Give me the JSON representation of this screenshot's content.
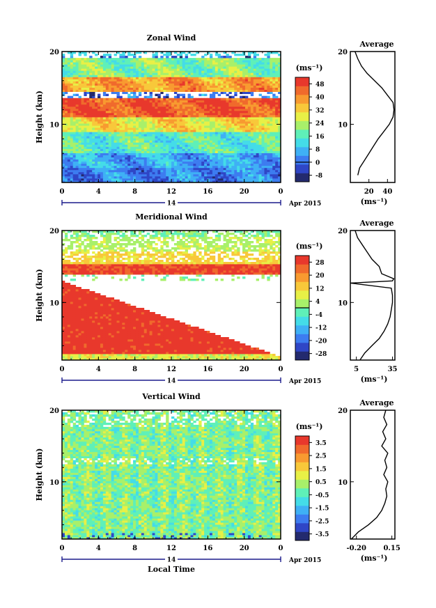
{
  "figure": {
    "xlabel": "Local Time",
    "date_label": "Apr 2015",
    "day_label": "14",
    "unit_label": "(ms⁻¹)",
    "avg_title": "Average",
    "height_label": "Height (km)"
  },
  "chart_data": [
    {
      "type": "heatmap",
      "title": "Zonal Wind",
      "xlabel": "",
      "ylabel": "Height (km)",
      "x_ticks": [
        "0",
        "4",
        "8",
        "12",
        "16",
        "20",
        "0"
      ],
      "y_ticks": [
        "10",
        "20"
      ],
      "xlim": [
        0,
        24
      ],
      "ylim": [
        2,
        20
      ],
      "colorbar": {
        "unit": "(ms⁻¹)",
        "tick_labels": [
          "48",
          "40",
          "32",
          "24",
          "16",
          "8",
          "0",
          "-8"
        ],
        "range": [
          -12,
          52
        ],
        "colors": [
          "#232a6e",
          "#2f46c6",
          "#3d7cf0",
          "#3fb0f5",
          "#44dce8",
          "#5ff0b8",
          "#a8f06a",
          "#e8f046",
          "#f8c83a",
          "#f89a30",
          "#f06a2c",
          "#e8382c"
        ]
      },
      "features": [
        {
          "z_km": [
            2,
            4
          ],
          "value": 2
        },
        {
          "z_km": [
            4,
            6
          ],
          "value": 6
        },
        {
          "z_km": [
            6,
            9
          ],
          "value": 16
        },
        {
          "z_km": [
            9,
            11
          ],
          "value": 30
        },
        {
          "z_km": [
            11,
            13.5
          ],
          "value": 46
        },
        {
          "z_km": [
            14.5,
            16.5
          ],
          "value": 38
        },
        {
          "z_km": [
            16.5,
            19
          ],
          "value": 20
        }
      ],
      "average_profile": {
        "title": "Average",
        "xlabel": "(ms⁻¹)",
        "x_ticks": [
          "20",
          "40"
        ],
        "xlim": [
          0,
          48
        ],
        "y_ticks": [
          "10",
          "20"
        ],
        "z_km": [
          3,
          4,
          5,
          6,
          7,
          8,
          9,
          10,
          11,
          12,
          13,
          14,
          15,
          16,
          17,
          18,
          19,
          20
        ],
        "value": [
          8,
          10,
          15,
          20,
          25,
          30,
          36,
          42,
          46,
          47,
          46,
          40,
          34,
          26,
          18,
          12,
          8,
          5
        ]
      }
    },
    {
      "type": "heatmap",
      "title": "Meridional Wind",
      "xlabel": "",
      "ylabel": "Height (km)",
      "x_ticks": [
        "0",
        "4",
        "8",
        "12",
        "16",
        "20",
        "0"
      ],
      "y_ticks": [
        "10",
        "20"
      ],
      "xlim": [
        0,
        24
      ],
      "ylim": [
        2,
        20
      ],
      "colorbar": {
        "unit": "(ms⁻¹)",
        "tick_labels": [
          "28",
          "20",
          "12",
          "4",
          "-4",
          "-12",
          "-20",
          "-28"
        ],
        "range": [
          -32,
          32
        ],
        "colors": [
          "#232a6e",
          "#2f46c6",
          "#3d7cf0",
          "#3fb0f5",
          "#44dce8",
          "#5ff0b8",
          "#a8f06a",
          "#e8f046",
          "#f8c83a",
          "#f89a30",
          "#f06a2c",
          "#e8382c"
        ]
      },
      "features": [
        {
          "z_km": [
            2,
            3
          ],
          "value": 8
        },
        {
          "z_km": [
            3,
            10
          ],
          "value": 30
        },
        {
          "z_km": [
            10,
            13
          ],
          "value": 30
        },
        {
          "z_km": [
            14,
            15.5
          ],
          "value": 28
        },
        {
          "z_km": [
            15.5,
            17
          ],
          "value": 12
        },
        {
          "z_km": [
            17,
            19
          ],
          "value": 4
        }
      ],
      "average_profile": {
        "title": "Average",
        "xlabel": "(ms⁻¹)",
        "x_ticks": [
          "5",
          "35"
        ],
        "xlim": [
          0,
          37
        ],
        "y_ticks": [
          "10",
          "20"
        ],
        "z_km": [
          2,
          3,
          4,
          5,
          6,
          7,
          8,
          9,
          10,
          11,
          12,
          12.7,
          13,
          13.3,
          14,
          15,
          16,
          17,
          18,
          19,
          20
        ],
        "value": [
          8,
          12,
          18,
          24,
          28,
          31,
          33,
          34,
          35,
          35,
          34,
          0,
          35,
          36,
          26,
          24,
          18,
          14,
          10,
          6,
          4
        ]
      }
    },
    {
      "type": "heatmap",
      "title": "Vertical Wind",
      "xlabel": "Local Time",
      "ylabel": "Height (km)",
      "x_ticks": [
        "0",
        "4",
        "8",
        "12",
        "16",
        "20",
        "0"
      ],
      "y_ticks": [
        "10",
        "20"
      ],
      "xlim": [
        0,
        24
      ],
      "ylim": [
        2,
        20
      ],
      "colorbar": {
        "unit": "(ms⁻¹)",
        "tick_labels": [
          "3.5",
          "2.5",
          "1.5",
          "0.5",
          "-0.5",
          "-1.5",
          "-2.5",
          "-3.5"
        ],
        "range": [
          -4,
          4
        ],
        "colors": [
          "#232a6e",
          "#2f46c6",
          "#3d7cf0",
          "#3fb0f5",
          "#44dce8",
          "#5ff0b8",
          "#a8f06a",
          "#e8f046",
          "#f8c83a",
          "#f89a30",
          "#f06a2c",
          "#e8382c"
        ]
      },
      "features": [
        {
          "z_km": [
            2,
            20
          ],
          "value": 0
        }
      ],
      "average_profile": {
        "title": "Average",
        "xlabel": "(ms⁻¹)",
        "x_ticks": [
          "-0.20",
          "0.15"
        ],
        "xlim": [
          -0.26,
          0.18
        ],
        "y_ticks": [
          "10",
          "20"
        ],
        "z_km": [
          2,
          3,
          4,
          5,
          6,
          7,
          8,
          9,
          10,
          11,
          12,
          13,
          14,
          15,
          16,
          17,
          18,
          19,
          20
        ],
        "value": [
          -0.25,
          -0.18,
          -0.08,
          0.0,
          0.05,
          0.08,
          0.1,
          0.09,
          0.11,
          0.07,
          0.1,
          0.08,
          0.11,
          0.05,
          0.09,
          0.06,
          0.1,
          0.07,
          0.09
        ]
      }
    }
  ]
}
